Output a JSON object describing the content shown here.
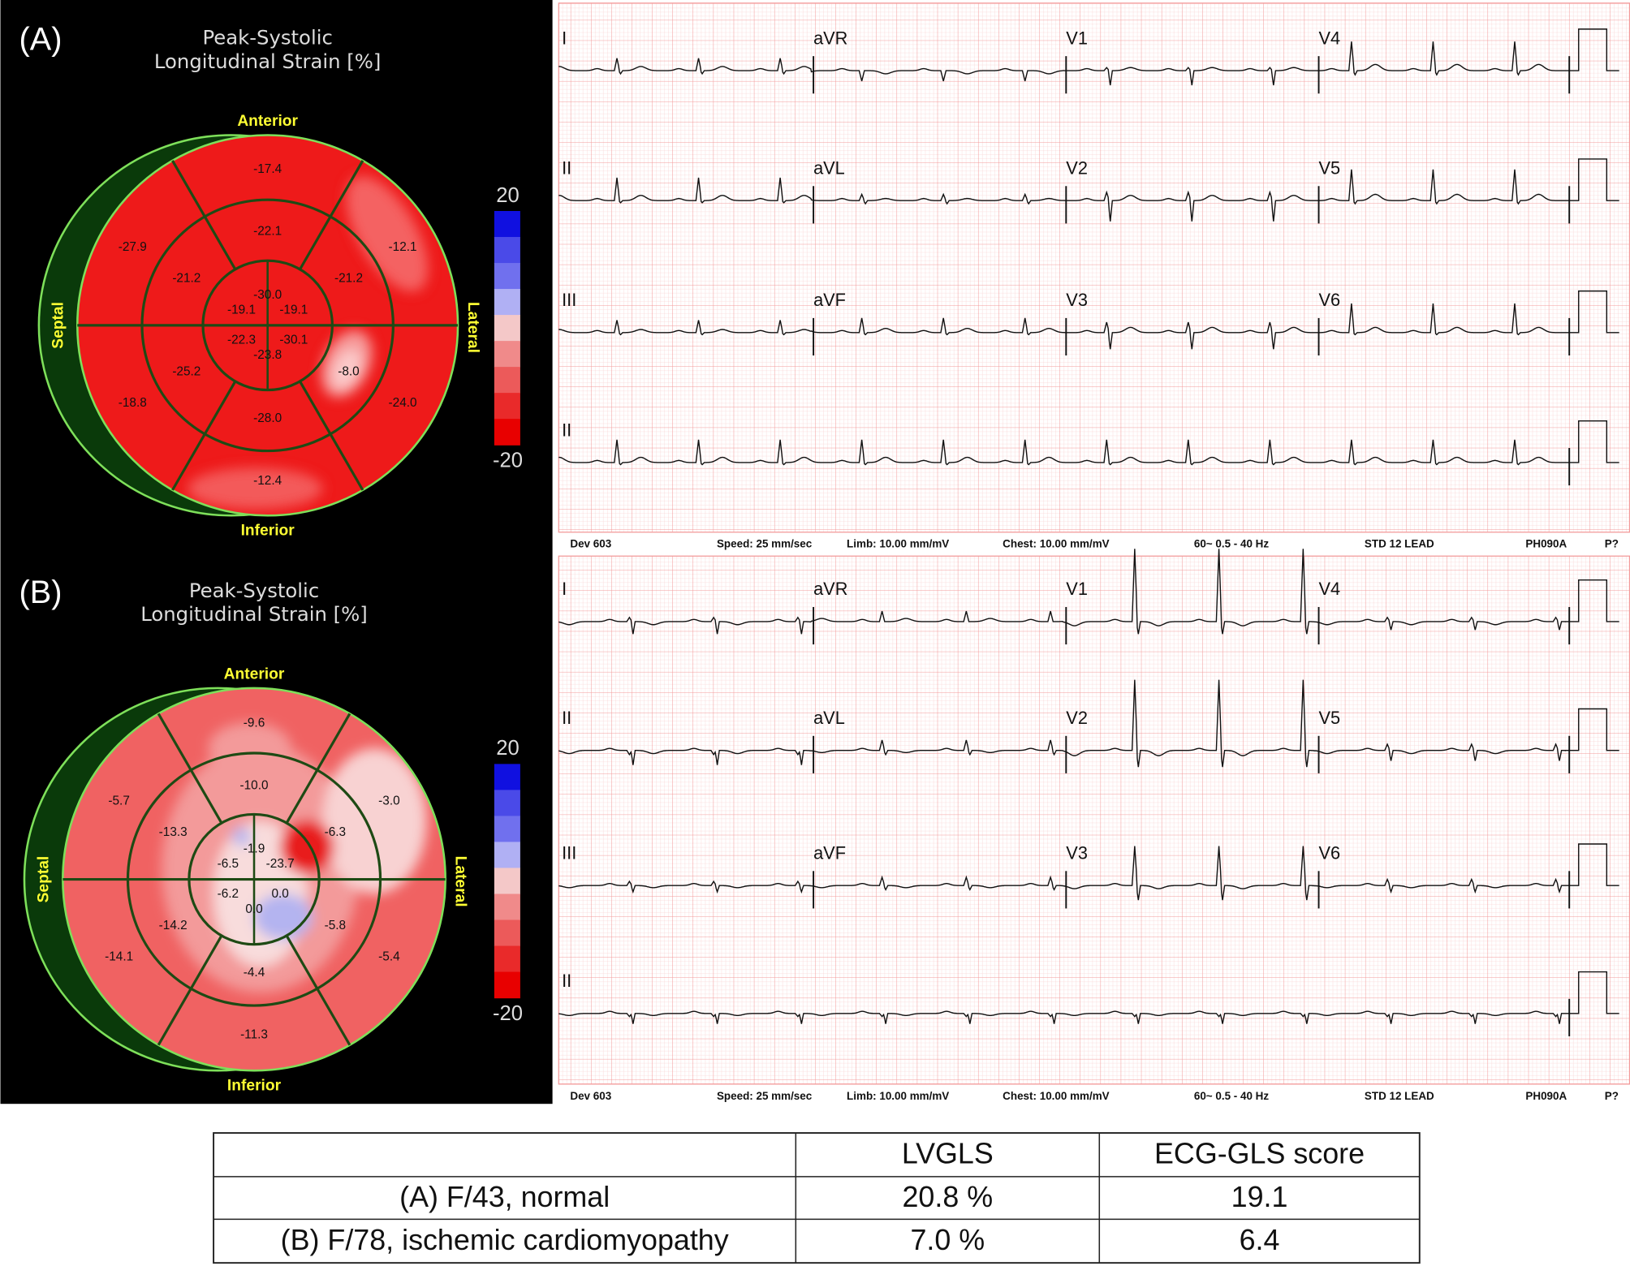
{
  "panels": [
    {
      "label": "(A)",
      "bullseye": {
        "title": [
          "Peak-Systolic",
          "Longitudinal Strain [%]"
        ],
        "anterior": "Anterior",
        "inferior": "Inferior",
        "septal": "Septal",
        "lateral": "Lateral",
        "scale_max": "20",
        "scale_min": "-20",
        "basal": [
          "-17.4",
          "-12.1",
          "-24.0",
          "-12.4",
          "-18.8",
          "-27.9"
        ],
        "mid": [
          "-22.1",
          "-21.2",
          "-8.0",
          "-28.0",
          "-25.2",
          "-21.2"
        ],
        "apical": [
          "-30.0",
          "-19.1",
          "-30.1",
          "-23.8",
          "-22.3",
          "-19.1"
        ]
      },
      "ecg": {
        "leads": [
          [
            "I",
            "aVR",
            "V1",
            "V4"
          ],
          [
            "II",
            "aVL",
            "V2",
            "V5"
          ],
          [
            "III",
            "aVF",
            "V3",
            "V6"
          ],
          [
            "II"
          ]
        ],
        "footer": [
          "Dev  603",
          "Speed: 25 mm/sec",
          "Limb: 10.00 mm/mV",
          "Chest: 10.00 mm/mV",
          "60~   0.5 - 40 Hz",
          "STD 12 LEAD",
          "PH090A",
          "P?"
        ]
      }
    },
    {
      "label": "(B)",
      "bullseye": {
        "title": [
          "Peak-Systolic",
          "Longitudinal Strain [%]"
        ],
        "anterior": "Anterior",
        "inferior": "Inferior",
        "septal": "Septal",
        "lateral": "Lateral",
        "scale_max": "20",
        "scale_min": "-20",
        "basal": [
          "-9.6",
          "-3.0",
          "-5.4",
          "-11.3",
          "-14.1",
          "-5.7"
        ],
        "mid": [
          "-10.0",
          "-6.3",
          "-5.8",
          "-4.4",
          "-14.2",
          "-13.3"
        ],
        "apical": [
          "-1.9",
          "-23.7",
          "0.0",
          "0.0",
          "-6.2",
          "-6.5"
        ]
      },
      "ecg": {
        "leads": [
          [
            "I",
            "aVR",
            "V1",
            "V4"
          ],
          [
            "II",
            "aVL",
            "V2",
            "V5"
          ],
          [
            "III",
            "aVF",
            "V3",
            "V6"
          ],
          [
            "II"
          ]
        ],
        "footer": [
          "Dev  603",
          "Speed: 25 mm/sec",
          "Limb: 10.00 mm/mV",
          "Chest: 10.00 mm/mV",
          "60~   0.5 - 40 Hz",
          "STD 12 LEAD",
          "PH090A",
          "P?"
        ]
      }
    }
  ],
  "table": {
    "header": [
      "LVGLS",
      "ECG-GLS score"
    ],
    "rows": [
      [
        "(A) F/43, normal",
        "20.8 %",
        "19.1"
      ],
      [
        "(B) F/78, ischemic cardiomyopathy",
        "7.0 %",
        "6.4"
      ]
    ]
  }
}
